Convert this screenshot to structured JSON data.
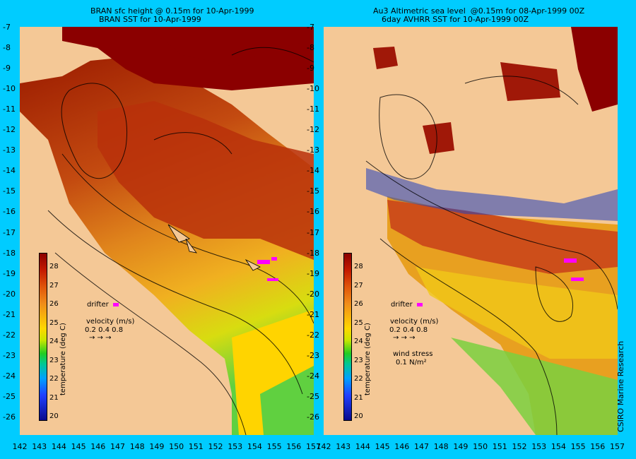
{
  "left_panel": {
    "title_line1": "BRAN sfc height @ 0.15m for 10-Apr-1999",
    "title_line2": "BRAN SST for 10-Apr-1999"
  },
  "right_panel": {
    "title_line1": "Au3 Altimetric sea level  @0.15m for 08-Apr-1999 00Z",
    "title_line2": "6day AVHRR SST for 10-Apr-1999 00Z"
  },
  "lat_ticks": [
    "-7",
    "-8",
    "-9",
    "-10",
    "-11",
    "-12",
    "-13",
    "-14",
    "-15",
    "-16",
    "-17",
    "-18",
    "-19",
    "-20",
    "-21",
    "-22",
    "-23",
    "-24",
    "-25",
    "-26"
  ],
  "lon_ticks": [
    "142",
    "143",
    "144",
    "145",
    "146",
    "147",
    "148",
    "149",
    "150",
    "151",
    "152",
    "153",
    "154",
    "155",
    "156",
    "157"
  ],
  "lon_ticks_right": [
    "142",
    "143",
    "144",
    "145",
    "146",
    "147",
    "148",
    "149",
    "150",
    "151",
    "152",
    "153",
    "154",
    "155",
    "156",
    "157"
  ],
  "colorbar": {
    "label": "temperature (deg C)",
    "ticks": [
      "28",
      "27",
      "26",
      "25",
      "24",
      "23",
      "22",
      "21",
      "20"
    ]
  },
  "legend": {
    "drifter": "drifter",
    "velocity_label": "velocity (m/s)",
    "velocity_scale": "0.2 0.4 0.8",
    "velocity_arrows": "→ → →",
    "wind_label": "wind stress",
    "wind_value": "0.1 N/m²"
  },
  "credit": "CSIRO Marine Research",
  "colors": {
    "background": "#00ccff",
    "land": "#f4c896",
    "warm": "#8b0000",
    "drifter": "#ff00ff"
  }
}
